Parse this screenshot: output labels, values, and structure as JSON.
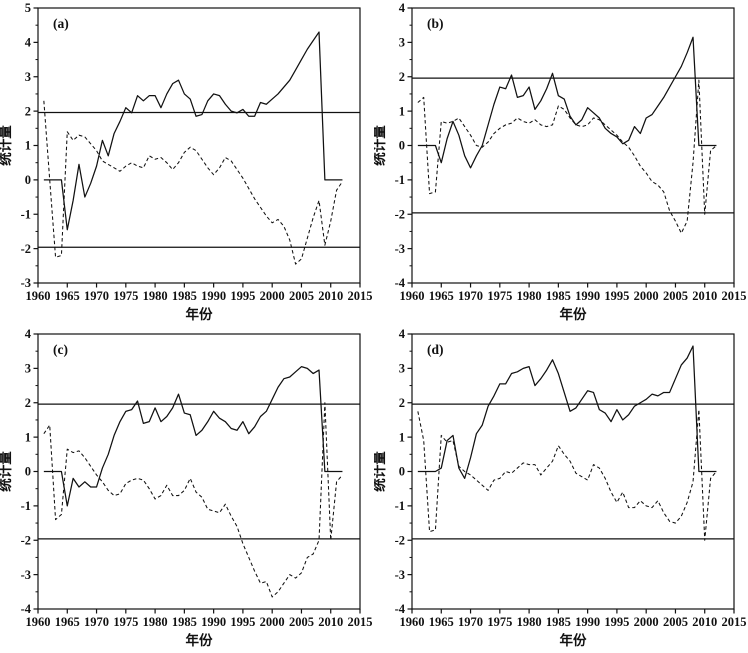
{
  "page": {
    "background": "#ffffff",
    "line_color": "#111111"
  },
  "chart_data": [
    {
      "type": "line",
      "panel_label": "(a)",
      "xlabel": "年份",
      "ylabel": "统计量",
      "xlim": [
        1960,
        2015
      ],
      "ylim": [
        -3,
        5
      ],
      "xticks": [
        1960,
        1965,
        1970,
        1975,
        1980,
        1985,
        1990,
        1995,
        2000,
        2005,
        2010,
        2015
      ],
      "yticks": [
        -3,
        -2,
        -1,
        0,
        1,
        2,
        3,
        4,
        5
      ],
      "minor_ytick_step": 0.5,
      "reference_lines": [
        1.96,
        -1.96
      ],
      "grid": false,
      "legend": "none",
      "x_range": [
        1961,
        2012
      ],
      "series": [
        {
          "line_style": "solid",
          "values": [
            0,
            0,
            0,
            0,
            -1.45,
            -0.6,
            0.45,
            -0.5,
            -0.1,
            0.4,
            1.15,
            0.7,
            1.35,
            1.7,
            2.1,
            1.95,
            2.45,
            2.3,
            2.45,
            2.45,
            2.1,
            2.5,
            2.8,
            2.9,
            2.5,
            2.35,
            1.85,
            1.9,
            2.3,
            2.5,
            2.45,
            2.2,
            2.0,
            1.95,
            2.05,
            1.85,
            1.85,
            2.25,
            2.2,
            2.35,
            2.5,
            2.7,
            2.9,
            3.2,
            3.5,
            3.8,
            4.05,
            4.3,
            0,
            0,
            0,
            0
          ]
        },
        {
          "line_style": "dashed",
          "values": [
            2.3,
            0.0,
            -2.25,
            -2.2,
            1.4,
            1.15,
            1.3,
            1.25,
            1.05,
            0.85,
            0.55,
            0.45,
            0.35,
            0.25,
            0.4,
            0.5,
            0.4,
            0.35,
            0.7,
            0.6,
            0.65,
            0.5,
            0.3,
            0.5,
            0.8,
            0.95,
            0.85,
            0.6,
            0.35,
            0.15,
            0.35,
            0.65,
            0.55,
            0.3,
            0.05,
            -0.25,
            -0.55,
            -0.8,
            -1.05,
            -1.25,
            -1.15,
            -1.35,
            -1.75,
            -2.45,
            -2.3,
            -1.7,
            -1.1,
            -0.6,
            -1.9,
            -1.2,
            -0.3,
            -0.05
          ]
        }
      ]
    },
    {
      "type": "line",
      "panel_label": "(b)",
      "xlabel": "年份",
      "ylabel": "统计量",
      "xlim": [
        1960,
        2015
      ],
      "ylim": [
        -4,
        4
      ],
      "xticks": [
        1960,
        1965,
        1970,
        1975,
        1980,
        1985,
        1990,
        1995,
        2000,
        2005,
        2010,
        2015
      ],
      "yticks": [
        -4,
        -3,
        -2,
        -1,
        0,
        1,
        2,
        3,
        4
      ],
      "minor_ytick_step": 0.5,
      "reference_lines": [
        1.96,
        -1.96
      ],
      "grid": false,
      "legend": "none",
      "x_range": [
        1961,
        2012
      ],
      "series": [
        {
          "line_style": "solid",
          "values": [
            0,
            0,
            0,
            0,
            -0.5,
            0.2,
            0.7,
            0.3,
            -0.3,
            -0.65,
            -0.3,
            0.0,
            0.6,
            1.2,
            1.7,
            1.65,
            2.05,
            1.4,
            1.45,
            1.7,
            1.05,
            1.3,
            1.65,
            2.1,
            1.45,
            1.35,
            0.85,
            0.6,
            0.75,
            1.1,
            0.95,
            0.8,
            0.5,
            0.35,
            0.25,
            0.05,
            0.15,
            0.55,
            0.35,
            0.8,
            0.9,
            1.15,
            1.4,
            1.7,
            2.0,
            2.3,
            2.7,
            3.15,
            0,
            0,
            0,
            0
          ]
        },
        {
          "line_style": "dashed",
          "values": [
            1.25,
            1.4,
            -1.4,
            -1.35,
            0.7,
            0.65,
            0.7,
            0.8,
            0.55,
            0.3,
            0.0,
            -0.05,
            0.1,
            0.35,
            0.5,
            0.6,
            0.65,
            0.8,
            0.7,
            0.65,
            0.75,
            0.6,
            0.55,
            0.6,
            1.15,
            1.05,
            0.8,
            0.6,
            0.55,
            0.6,
            0.8,
            0.75,
            0.6,
            0.45,
            0.3,
            0.1,
            -0.05,
            -0.3,
            -0.6,
            -0.8,
            -1.05,
            -1.15,
            -1.35,
            -1.9,
            -2.2,
            -2.55,
            -2.2,
            -0.5,
            1.9,
            -2.0,
            -0.15,
            0.0
          ]
        }
      ]
    },
    {
      "type": "line",
      "panel_label": "(c)",
      "xlabel": "年份",
      "ylabel": "统计量",
      "xlim": [
        1960,
        2015
      ],
      "ylim": [
        -4,
        4
      ],
      "xticks": [
        1960,
        1965,
        1970,
        1975,
        1980,
        1985,
        1990,
        1995,
        2000,
        2005,
        2010,
        2015
      ],
      "yticks": [
        -4,
        -3,
        -2,
        -1,
        0,
        1,
        2,
        3,
        4
      ],
      "minor_ytick_step": 0.5,
      "reference_lines": [
        1.96,
        -1.96
      ],
      "grid": false,
      "legend": "none",
      "x_range": [
        1961,
        2012
      ],
      "series": [
        {
          "line_style": "solid",
          "values": [
            0,
            0,
            0,
            0,
            -1.0,
            -0.2,
            -0.45,
            -0.3,
            -0.45,
            -0.45,
            0.1,
            0.5,
            1.05,
            1.45,
            1.75,
            1.8,
            2.05,
            1.4,
            1.45,
            1.85,
            1.45,
            1.6,
            1.85,
            2.25,
            1.7,
            1.65,
            1.05,
            1.2,
            1.45,
            1.75,
            1.55,
            1.45,
            1.25,
            1.2,
            1.45,
            1.1,
            1.3,
            1.6,
            1.75,
            2.1,
            2.45,
            2.7,
            2.75,
            2.9,
            3.05,
            3.0,
            2.85,
            2.95,
            0,
            0,
            0,
            0
          ]
        },
        {
          "line_style": "dashed",
          "values": [
            1.1,
            1.35,
            -1.4,
            -1.25,
            0.65,
            0.55,
            0.6,
            0.4,
            0.15,
            -0.1,
            -0.3,
            -0.55,
            -0.7,
            -0.65,
            -0.35,
            -0.25,
            -0.2,
            -0.25,
            -0.5,
            -0.8,
            -0.7,
            -0.4,
            -0.7,
            -0.7,
            -0.55,
            -0.2,
            -0.6,
            -0.75,
            -1.1,
            -1.15,
            -1.2,
            -0.95,
            -1.3,
            -1.6,
            -2.1,
            -2.5,
            -2.9,
            -3.25,
            -3.2,
            -3.65,
            -3.5,
            -3.25,
            -3.0,
            -3.1,
            -2.95,
            -2.5,
            -2.4,
            -2.0,
            2.0,
            -2.0,
            -0.3,
            -0.1
          ]
        }
      ]
    },
    {
      "type": "line",
      "panel_label": "(d)",
      "xlabel": "年份",
      "ylabel": "统计量",
      "xlim": [
        1960,
        2015
      ],
      "ylim": [
        -4,
        4
      ],
      "xticks": [
        1960,
        1965,
        1970,
        1975,
        1980,
        1985,
        1990,
        1995,
        2000,
        2005,
        2010,
        2015
      ],
      "yticks": [
        -4,
        -3,
        -2,
        -1,
        0,
        1,
        2,
        3,
        4
      ],
      "minor_ytick_step": 0.5,
      "reference_lines": [
        1.96,
        -1.96
      ],
      "grid": false,
      "legend": "none",
      "x_range": [
        1961,
        2012
      ],
      "series": [
        {
          "line_style": "solid",
          "values": [
            0,
            0,
            0,
            0,
            0.1,
            0.9,
            1.05,
            0.1,
            -0.2,
            0.4,
            1.1,
            1.35,
            1.9,
            2.2,
            2.55,
            2.55,
            2.85,
            2.9,
            3.0,
            3.05,
            2.5,
            2.7,
            2.95,
            3.25,
            2.85,
            2.3,
            1.75,
            1.85,
            2.1,
            2.35,
            2.3,
            1.8,
            1.7,
            1.45,
            1.8,
            1.5,
            1.65,
            1.9,
            2.0,
            2.1,
            2.25,
            2.2,
            2.3,
            2.3,
            2.7,
            3.1,
            3.3,
            3.65,
            0,
            0,
            0,
            0
          ]
        },
        {
          "line_style": "dashed",
          "values": [
            1.75,
            0.9,
            -1.75,
            -1.7,
            1.05,
            0.85,
            0.9,
            0.15,
            0.0,
            -0.1,
            -0.25,
            -0.4,
            -0.55,
            -0.25,
            -0.2,
            0.0,
            -0.05,
            0.1,
            0.25,
            0.2,
            0.2,
            -0.1,
            0.1,
            0.3,
            0.75,
            0.5,
            0.3,
            -0.05,
            -0.15,
            -0.25,
            0.2,
            0.1,
            -0.2,
            -0.6,
            -0.9,
            -0.6,
            -1.05,
            -1.05,
            -0.85,
            -1.0,
            -1.05,
            -0.85,
            -1.2,
            -1.45,
            -1.5,
            -1.3,
            -0.9,
            -0.3,
            1.8,
            -2.0,
            -0.2,
            0.0
          ]
        }
      ]
    }
  ]
}
